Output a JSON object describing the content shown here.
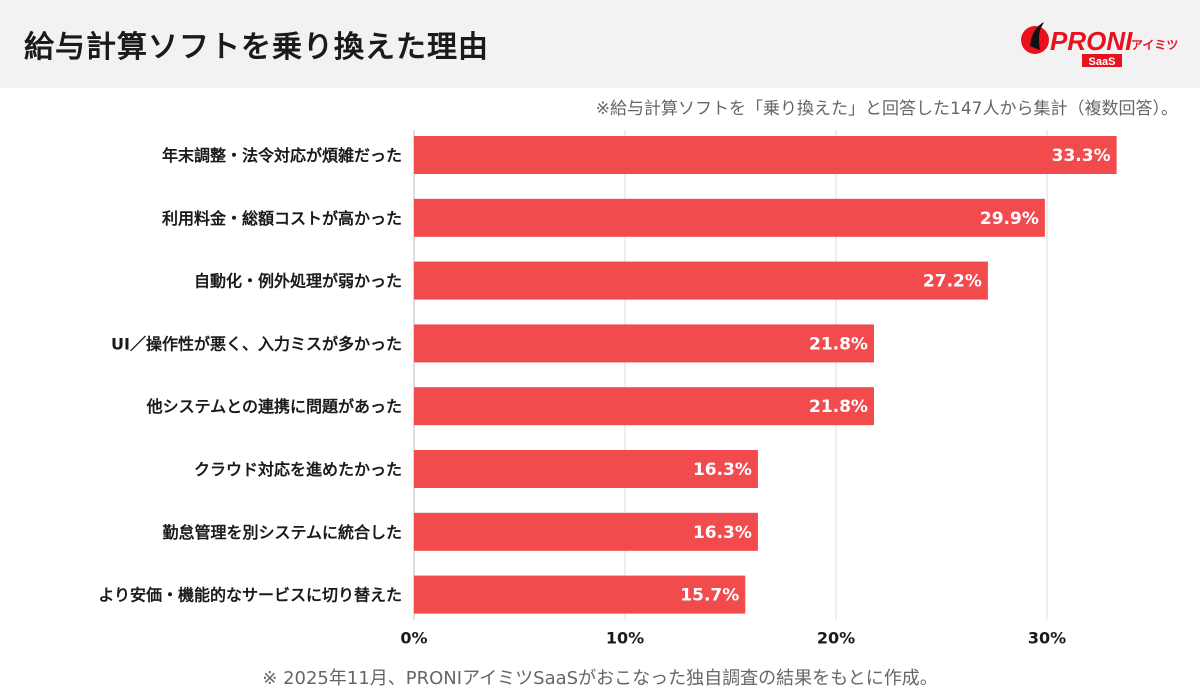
{
  "header": {
    "title": "給与計算ソフトを乗り換えた理由"
  },
  "logo": {
    "text": "PRONI",
    "suffix": "アイミツ",
    "badge": "SaaS",
    "color": "#e8121e"
  },
  "note": "※給与計算ソフトを「乗り換えた」と回答した147人から集計（複数回答）。",
  "footer": "※ 2025年11月、PRONIアイミツSaaSがおこなった独自調査の結果をもとに作成。",
  "chart_data": {
    "type": "bar",
    "orientation": "horizontal",
    "categories": [
      "年末調整・法令対応が煩雑だった",
      "利用料金・総額コストが高かった",
      "自動化・例外処理が弱かった",
      "UI／操作性が悪く、入力ミスが多かった",
      "他システムとの連携に問題があった",
      "クラウド対応を進めたかった",
      "勤怠管理を別システムに統合した",
      "より安価・機能的なサービスに切り替えた"
    ],
    "values": [
      33.3,
      29.9,
      27.2,
      21.8,
      21.8,
      16.3,
      16.3,
      15.7
    ],
    "value_labels": [
      "33.3%",
      "29.9%",
      "27.2%",
      "21.8%",
      "21.8%",
      "16.3%",
      "16.3%",
      "15.7%"
    ],
    "xlim": [
      0,
      33.3
    ],
    "xticks": [
      0,
      10,
      20,
      30
    ],
    "xtick_labels": [
      "0%",
      "10%",
      "20%",
      "30%"
    ],
    "grid": true,
    "bar_color": "#f24b4e"
  }
}
